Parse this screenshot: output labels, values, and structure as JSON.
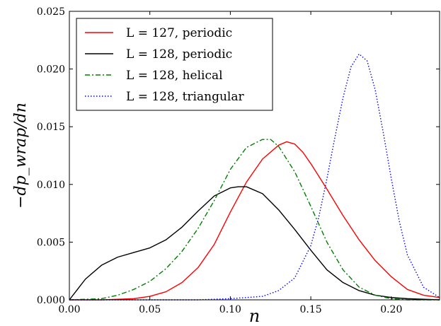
{
  "chart_data": {
    "type": "line",
    "xlabel": "n",
    "ylabel": "−dp_wrap/dn",
    "xlim": [
      0.0,
      0.23
    ],
    "ylim": [
      0.0,
      0.025
    ],
    "xticks": [
      "0.00",
      "0.05",
      "0.10",
      "0.15",
      "0.20"
    ],
    "yticks": [
      "0.000",
      "0.005",
      "0.010",
      "0.015",
      "0.020",
      "0.025"
    ],
    "grid": false,
    "legend_position": "top-left",
    "series": [
      {
        "name": "L = 127, periodic",
        "color": "#ff0000",
        "dash": "solid",
        "x": [
          0.0,
          0.02,
          0.03,
          0.04,
          0.05,
          0.06,
          0.07,
          0.08,
          0.09,
          0.1,
          0.11,
          0.12,
          0.13,
          0.135,
          0.14,
          0.145,
          0.15,
          0.16,
          0.17,
          0.18,
          0.19,
          0.2,
          0.21,
          0.22,
          0.23
        ],
        "y": [
          0.0,
          0.0,
          5e-05,
          0.0001,
          0.0003,
          0.0007,
          0.0015,
          0.0028,
          0.0048,
          0.0076,
          0.0102,
          0.0122,
          0.0134,
          0.0137,
          0.0135,
          0.0128,
          0.0118,
          0.0096,
          0.0073,
          0.0052,
          0.0034,
          0.002,
          0.0009,
          0.0004,
          0.0002
        ]
      },
      {
        "name": "L = 128, periodic",
        "color": "#000000",
        "dash": "solid",
        "x": [
          0.0,
          0.005,
          0.01,
          0.02,
          0.03,
          0.04,
          0.05,
          0.06,
          0.07,
          0.08,
          0.09,
          0.1,
          0.105,
          0.11,
          0.12,
          0.13,
          0.14,
          0.15,
          0.16,
          0.17,
          0.18,
          0.19,
          0.2,
          0.21,
          0.23
        ],
        "y": [
          0.0,
          0.0009,
          0.0018,
          0.003,
          0.0037,
          0.0041,
          0.0045,
          0.0052,
          0.0063,
          0.0077,
          0.009,
          0.0097,
          0.0098,
          0.0098,
          0.0092,
          0.0078,
          0.0061,
          0.0043,
          0.0026,
          0.0015,
          0.0008,
          0.0004,
          0.0002,
          0.0001,
          0.0
        ]
      },
      {
        "name": "L = 128, helical",
        "color": "#007f00",
        "dash": "dashdot",
        "x": [
          0.0,
          0.02,
          0.03,
          0.04,
          0.05,
          0.06,
          0.07,
          0.08,
          0.09,
          0.1,
          0.11,
          0.12,
          0.125,
          0.13,
          0.14,
          0.15,
          0.16,
          0.17,
          0.18,
          0.19,
          0.2,
          0.21,
          0.23
        ],
        "y": [
          0.0,
          0.0001,
          0.0004,
          0.0009,
          0.0016,
          0.0027,
          0.0042,
          0.0062,
          0.0086,
          0.0113,
          0.0132,
          0.0139,
          0.0139,
          0.0133,
          0.0111,
          0.0081,
          0.005,
          0.0026,
          0.0011,
          0.0004,
          0.0001,
          0.0,
          0.0
        ]
      },
      {
        "name": "L = 128, triangular",
        "color": "#0000ff",
        "dash": "dotted",
        "x": [
          0.0,
          0.08,
          0.1,
          0.12,
          0.13,
          0.14,
          0.15,
          0.155,
          0.16,
          0.165,
          0.17,
          0.175,
          0.18,
          0.185,
          0.19,
          0.195,
          0.2,
          0.205,
          0.21,
          0.22,
          0.23
        ],
        "y": [
          0.0,
          0.0,
          0.0001,
          0.0003,
          0.0008,
          0.0019,
          0.0047,
          0.0072,
          0.0105,
          0.0141,
          0.0175,
          0.0202,
          0.0213,
          0.0207,
          0.0182,
          0.0145,
          0.0105,
          0.0068,
          0.0039,
          0.0011,
          0.0002
        ]
      }
    ]
  }
}
